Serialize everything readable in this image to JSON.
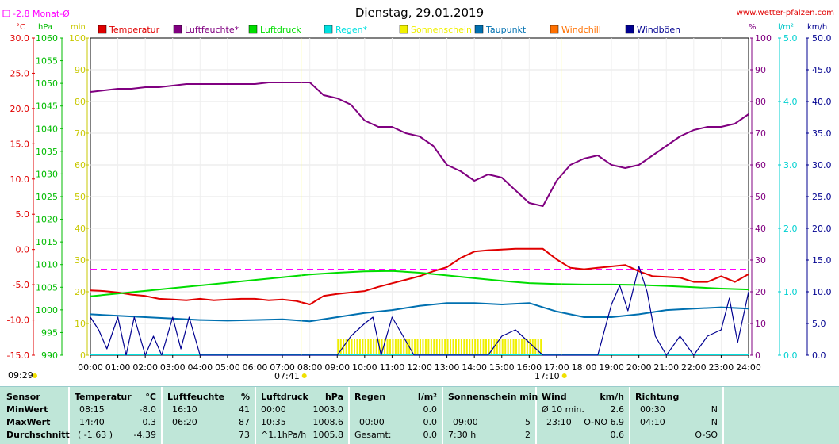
{
  "header": {
    "title": "Dienstag, 29.01.2019",
    "website": "www.wetter-pfalzen.com",
    "monat_label": "-2.8 Monat-Ø",
    "unit_celsius": "°C",
    "unit_hpa": "hPa",
    "unit_min": "min",
    "unit_percent": "%",
    "unit_lm2": "l/m²",
    "unit_kmh": "km/h"
  },
  "colors": {
    "temperatur": "#e00000",
    "luftfeuchte": "#800080",
    "luftdruck": "#00dd00",
    "regen": "#00e0e0",
    "sonnenschein": "#f0f000",
    "taupunkt": "#0070b0",
    "windchill": "#ff7000",
    "windboeen": "#000090",
    "monat_line": "#ff00ff",
    "plot_bg": "#ffffff",
    "table_bg": "#bfe6d8"
  },
  "legend": [
    {
      "name": "Temperatur",
      "color": "#e00000"
    },
    {
      "name": "Luftfeuchte*",
      "color": "#800080"
    },
    {
      "name": "Luftdruck",
      "color": "#00dd00"
    },
    {
      "name": "Regen*",
      "color": "#00e0e0"
    },
    {
      "name": "Sonnenschein",
      "color": "#f0f000"
    },
    {
      "name": "Taupunkt",
      "color": "#0070b0"
    },
    {
      "name": "Windchill",
      "color": "#ff7000"
    },
    {
      "name": "Windböen",
      "color": "#000090"
    }
  ],
  "chart_data": {
    "type": "line",
    "title": "Dienstag, 29.01.2019",
    "x_ticks": [
      "00:00",
      "01:00",
      "02:00",
      "03:00",
      "04:00",
      "05:00",
      "06:00",
      "07:00",
      "08:00",
      "09:00",
      "10:00",
      "11:00",
      "12:00",
      "13:00",
      "14:00",
      "15:00",
      "16:00",
      "17:00",
      "18:00",
      "19:00",
      "20:00",
      "21:00",
      "22:00",
      "23:00",
      "24:00"
    ],
    "axes": {
      "temperature_c": {
        "range": [
          -15,
          30
        ],
        "ticks": [
          "30.0",
          "25.0",
          "20.0",
          "15.0",
          "10.0",
          "5.0",
          "0.0",
          "-5.0",
          "-10.0",
          "-15.0"
        ]
      },
      "pressure_hpa": {
        "range": [
          990,
          1060
        ],
        "ticks": [
          "1060",
          "1055",
          "1050",
          "1045",
          "1040",
          "1035",
          "1030",
          "1025",
          "1020",
          "1015",
          "1010",
          "1005",
          "1000",
          "995",
          "990"
        ]
      },
      "sunshine_min": {
        "range": [
          0,
          100
        ],
        "ticks": [
          "100",
          "90",
          "80",
          "70",
          "60",
          "50",
          "40",
          "30",
          "20",
          "10",
          "0"
        ]
      },
      "humidity_pct": {
        "range": [
          0,
          100
        ],
        "ticks": [
          "100",
          "90",
          "80",
          "70",
          "60",
          "50",
          "40",
          "30",
          "20",
          "10",
          "0"
        ]
      },
      "rain_lm2": {
        "range": [
          0,
          5
        ],
        "ticks": [
          "5.0",
          "4.0",
          "3.0",
          "2.0",
          "1.0",
          "0.0"
        ]
      },
      "wind_kmh": {
        "range": [
          0,
          50
        ],
        "ticks": [
          "50.0",
          "45.0",
          "40.0",
          "35.0",
          "30.0",
          "25.0",
          "20.0",
          "15.0",
          "10.0",
          "5.0",
          "0.0"
        ]
      }
    },
    "monat_avg_c": -2.8,
    "sunrise": "07:41",
    "sunset": "17:10",
    "daylight_start_label": "09:29",
    "series": [
      {
        "name": "Temperatur",
        "axis": "temperature_c",
        "x": [
          0,
          0.5,
          1,
          1.5,
          2,
          2.5,
          3,
          3.5,
          4,
          4.5,
          5,
          5.5,
          6,
          6.5,
          7,
          7.5,
          8,
          8.5,
          9,
          9.5,
          10,
          10.5,
          11,
          11.5,
          12,
          12.5,
          13,
          13.5,
          14,
          14.5,
          15,
          15.5,
          16,
          16.5,
          17,
          17.5,
          18,
          18.5,
          19,
          19.5,
          20,
          20.5,
          21,
          21.5,
          22,
          22.5,
          23,
          23.5,
          24
        ],
        "values": [
          -5.8,
          -5.9,
          -6.1,
          -6.4,
          -6.6,
          -7.0,
          -7.1,
          -7.2,
          -7.0,
          -7.2,
          -7.1,
          -7.0,
          -7.0,
          -7.2,
          -7.1,
          -7.3,
          -7.8,
          -6.6,
          -6.3,
          -6.1,
          -5.9,
          -5.3,
          -4.8,
          -4.3,
          -3.8,
          -3.1,
          -2.5,
          -1.2,
          -0.3,
          -0.1,
          0.0,
          0.1,
          0.1,
          0.1,
          -1.4,
          -2.6,
          -2.8,
          -2.6,
          -2.4,
          -2.2,
          -3.1,
          -3.8,
          -3.9,
          -4.0,
          -4.6,
          -4.6,
          -3.8,
          -4.6,
          -3.5
        ]
      },
      {
        "name": "Luftfeuchte*",
        "axis": "humidity_pct",
        "x": [
          0,
          0.5,
          1,
          1.5,
          2,
          2.5,
          3,
          3.5,
          4,
          4.5,
          5,
          5.5,
          6,
          6.5,
          7,
          7.5,
          8,
          8.5,
          9,
          9.5,
          10,
          10.5,
          11,
          11.5,
          12,
          12.5,
          13,
          13.5,
          14,
          14.5,
          15,
          15.5,
          16,
          16.5,
          17,
          17.5,
          18,
          18.5,
          19,
          19.5,
          20,
          20.5,
          21,
          21.5,
          22,
          22.5,
          23,
          23.5,
          24
        ],
        "values": [
          83,
          83.5,
          84,
          84,
          84.5,
          84.5,
          85,
          85.5,
          85.5,
          85.5,
          85.5,
          85.5,
          85.5,
          86,
          86,
          86,
          86,
          82,
          81,
          79,
          74,
          72,
          72,
          70,
          69,
          66,
          60,
          58,
          55,
          57,
          56,
          52,
          48,
          47,
          55,
          60,
          62,
          63,
          60,
          59,
          60,
          63,
          66,
          69,
          71,
          72,
          72,
          73,
          76
        ]
      },
      {
        "name": "Luftdruck",
        "axis": "pressure_hpa",
        "x": [
          0,
          1,
          2,
          3,
          4,
          5,
          6,
          7,
          8,
          9,
          10,
          11,
          12,
          13,
          14,
          15,
          16,
          17,
          18,
          19,
          20,
          21,
          22,
          23,
          24
        ],
        "values": [
          1003.0,
          1003.6,
          1004.2,
          1004.8,
          1005.4,
          1006.0,
          1006.6,
          1007.2,
          1007.8,
          1008.2,
          1008.5,
          1008.6,
          1008.2,
          1007.6,
          1007.0,
          1006.4,
          1005.9,
          1005.7,
          1005.6,
          1005.6,
          1005.5,
          1005.3,
          1005.0,
          1004.7,
          1004.5
        ]
      },
      {
        "name": "Taupunkt",
        "axis": "temperature_c",
        "x": [
          0,
          1,
          2,
          3,
          4,
          5,
          6,
          7,
          8,
          9,
          10,
          11,
          12,
          13,
          14,
          15,
          16,
          17,
          18,
          19,
          20,
          21,
          22,
          23,
          24
        ],
        "values": [
          -9.2,
          -9.4,
          -9.6,
          -9.8,
          -10.0,
          -10.1,
          -10.0,
          -9.9,
          -10.2,
          -9.6,
          -9.0,
          -8.6,
          -8.0,
          -7.6,
          -7.6,
          -7.8,
          -7.6,
          -8.8,
          -9.6,
          -9.6,
          -9.2,
          -8.6,
          -8.4,
          -8.2,
          -8.4
        ]
      },
      {
        "name": "Windböen",
        "axis": "wind_kmh",
        "x": [
          0,
          0.3,
          0.6,
          1,
          1.3,
          1.6,
          2,
          2.3,
          2.6,
          3,
          3.3,
          3.6,
          4,
          6,
          9,
          9.5,
          10,
          10.3,
          10.6,
          11,
          11.4,
          11.8,
          12,
          14.5,
          15,
          15.5,
          16,
          16.5,
          17,
          18.5,
          19,
          19.3,
          19.6,
          20,
          20.3,
          20.6,
          21,
          21.5,
          22,
          22.5,
          23,
          23.3,
          23.6,
          24
        ],
        "values": [
          6,
          4,
          1,
          6,
          0,
          6,
          0,
          3,
          0,
          6,
          1,
          6,
          0,
          0,
          0,
          3,
          5,
          6,
          0,
          6,
          3,
          0,
          0,
          0,
          3,
          4,
          2,
          0,
          0,
          0,
          8,
          11,
          7,
          14,
          10,
          3,
          0,
          3,
          0,
          3,
          4,
          9,
          2,
          10
        ]
      }
    ],
    "sunshine_blocks": {
      "start": 9.0,
      "end": 16.5,
      "value": 5
    }
  },
  "table": {
    "row_labels": [
      "Sensor",
      "MinWert",
      "MaxWert",
      "Durchschnitt"
    ],
    "temperatur": {
      "header": "Temperatur",
      "unit": "°C",
      "min_time": "08:15",
      "min": "-8.0",
      "max_time": "14:40",
      "max": "0.3",
      "avg_extra": "( -1.63 )",
      "avg": "-4.39"
    },
    "luftfeuchte": {
      "header": "Luftfeuchte",
      "unit": "%",
      "min_time": "16:10",
      "min": "41",
      "max_time": "06:20",
      "max": "87",
      "avg": "73"
    },
    "luftdruck": {
      "header": "Luftdruck",
      "unit": "hPa",
      "min_time": "00:00",
      "min": "1003.0",
      "max_time": "10:35",
      "max": "1008.6",
      "avg_extra": "^1.1hPa/h",
      "avg": "1005.8"
    },
    "regen": {
      "header": "Regen",
      "unit": "l/m²",
      "min": "0.0",
      "max_time": "00:00",
      "max": "0.0",
      "avg_extra": "Gesamt:",
      "avg": "0.0"
    },
    "sonnenschein": {
      "header": "Sonnenschein min",
      "max_time": "09:00",
      "max": "5",
      "avg_extra": "7:30 h",
      "avg": "2"
    },
    "wind": {
      "header": "Wind",
      "unit": "km/h",
      "min_label": "Ø 10 min.",
      "min": "2.6",
      "max_time": "23:10",
      "max": "O-NO 6.9",
      "avg": "0.6"
    },
    "richtung": {
      "header": "Richtung",
      "min_time": "00:30",
      "min": "N",
      "max_time": "04:10",
      "max": "N",
      "avg": "O-SO"
    }
  }
}
